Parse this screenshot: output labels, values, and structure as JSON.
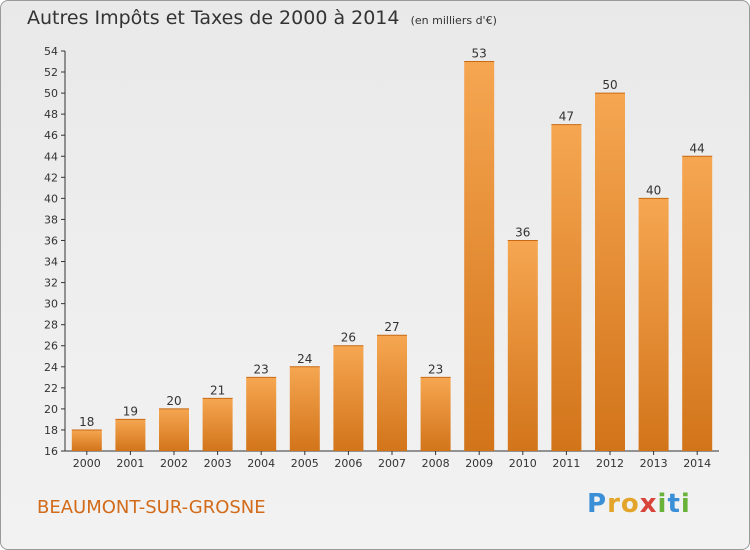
{
  "title": "Autres Impôts et Taxes de 2000 à 2014",
  "subtitle": "(en milliers d'€)",
  "commune": "BEAUMONT-SUR-GROSNE",
  "brand": [
    "P",
    "r",
    "o",
    "x",
    "i",
    "t",
    "i"
  ],
  "chart_data": {
    "type": "bar",
    "categories": [
      "2000",
      "2001",
      "2002",
      "2003",
      "2004",
      "2005",
      "2006",
      "2007",
      "2008",
      "2009",
      "2010",
      "2011",
      "2012",
      "2013",
      "2014"
    ],
    "values": [
      18,
      19,
      20,
      21,
      23,
      24,
      26,
      27,
      23,
      53,
      36,
      47,
      50,
      40,
      44
    ],
    "ylim": [
      16,
      54
    ],
    "yticks": [
      16,
      18,
      20,
      22,
      24,
      26,
      28,
      30,
      32,
      34,
      36,
      38,
      40,
      42,
      44,
      46,
      48,
      50,
      52,
      54
    ],
    "grid": false,
    "bar_color_top": "#f6a651",
    "bar_color_bottom": "#d2741a"
  }
}
